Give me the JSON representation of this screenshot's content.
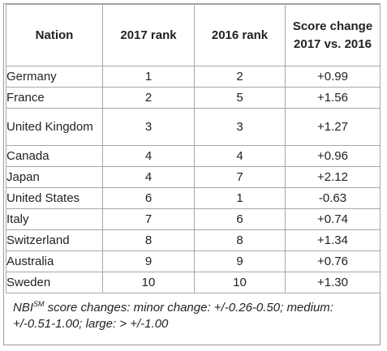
{
  "table": {
    "headers": {
      "nation": "Nation",
      "rank_2017": "2017 rank",
      "rank_2016": "2016 rank",
      "score_change": "Score change 2017 vs. 2016"
    },
    "rows": [
      {
        "nation": "Germany",
        "rank_2017": "1",
        "rank_2016": "2",
        "score_change": "+0.99"
      },
      {
        "nation": "France",
        "rank_2017": "2",
        "rank_2016": "5",
        "score_change": "+1.56"
      },
      {
        "nation": "United Kingdom",
        "rank_2017": "3",
        "rank_2016": "3",
        "score_change": "+1.27"
      },
      {
        "nation": "Canada",
        "rank_2017": "4",
        "rank_2016": "4",
        "score_change": "+0.96"
      },
      {
        "nation": "Japan",
        "rank_2017": "4",
        "rank_2016": "7",
        "score_change": "+2.12"
      },
      {
        "nation": "United States",
        "rank_2017": "6",
        "rank_2016": "1",
        "score_change": "-0.63"
      },
      {
        "nation": "Italy",
        "rank_2017": "7",
        "rank_2016": "6",
        "score_change": "+0.74"
      },
      {
        "nation": "Switzerland",
        "rank_2017": "8",
        "rank_2016": "8",
        "score_change": "+1.34"
      },
      {
        "nation": "Australia",
        "rank_2017": "9",
        "rank_2016": "9",
        "score_change": "+0.76"
      },
      {
        "nation": "Sweden",
        "rank_2017": "10",
        "rank_2016": "10",
        "score_change": "+1.30"
      }
    ]
  },
  "footnote": {
    "prefix": "NBI",
    "superscript": "SM",
    "text": " score changes: minor change: +/-0.26-0.50; medium: +/-0.51-1.00; large: > +/-1.00"
  }
}
